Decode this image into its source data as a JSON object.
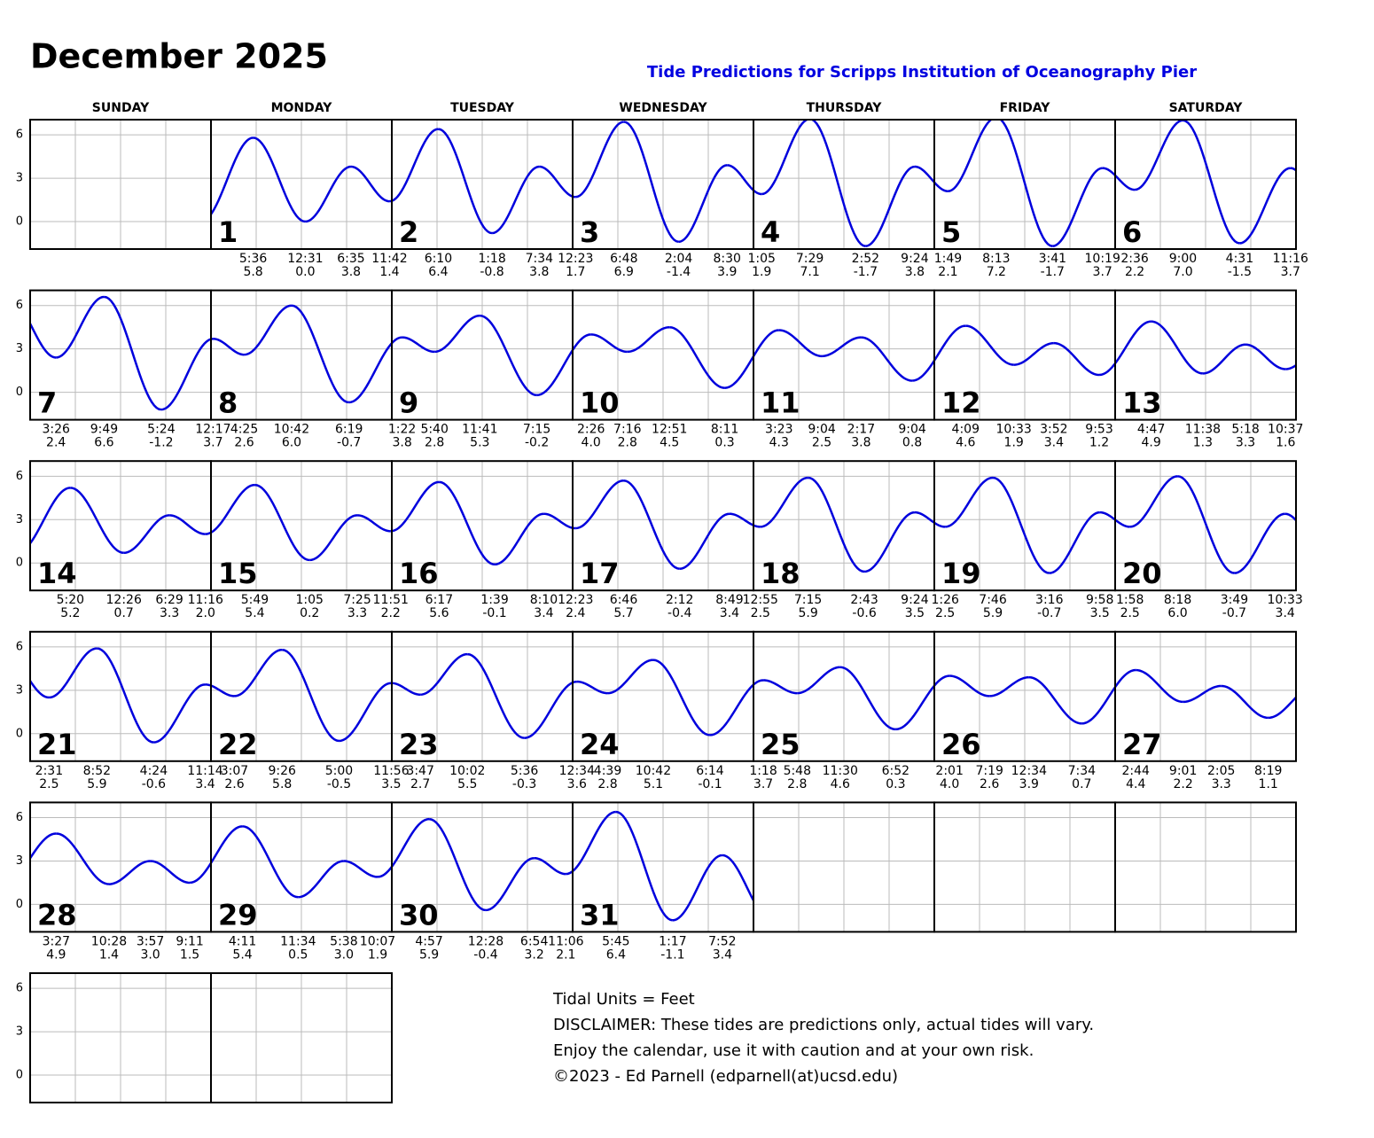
{
  "header": {
    "title": "December 2025",
    "subtitle": "Tide Predictions for Scripps Institution of Oceanography Pier"
  },
  "weekdays": [
    "SUNDAY",
    "MONDAY",
    "TUESDAY",
    "WEDNESDAY",
    "THURSDAY",
    "FRIDAY",
    "SATURDAY"
  ],
  "ylim": [
    -1.9,
    7.05
  ],
  "yticks": [
    0,
    3,
    6
  ],
  "days": [
    {
      "day": 1,
      "tides": [
        {
          "time": "5:36",
          "height": 5.8
        },
        {
          "time": "12:31",
          "height": 0,
          "height_label": "0.0"
        },
        {
          "time": "6:35",
          "height": 3.8
        },
        {
          "time": "11:42",
          "height": 1.4
        }
      ]
    },
    {
      "day": 2,
      "tides": [
        {
          "time": "6:10",
          "height": 6.4
        },
        {
          "time": "1:18",
          "height": -0.8
        },
        {
          "time": "7:34",
          "height": 3.8
        }
      ]
    },
    {
      "day": 3,
      "tides": [
        {
          "time": "12:23",
          "height": 1.7
        },
        {
          "time": "6:48",
          "height": 6.9
        },
        {
          "time": "2:04",
          "height": -1.4
        },
        {
          "time": "8:30",
          "height": 3.9
        }
      ]
    },
    {
      "day": 4,
      "tides": [
        {
          "time": "1:05",
          "height": 1.9
        },
        {
          "time": "7:29",
          "height": 7.1
        },
        {
          "time": "2:52",
          "height": -1.7
        },
        {
          "time": "9:24",
          "height": 3.8
        }
      ]
    },
    {
      "day": 5,
      "tides": [
        {
          "time": "1:49",
          "height": 2.1
        },
        {
          "time": "8:13",
          "height": 7.2
        },
        {
          "time": "3:41",
          "height": -1.7
        },
        {
          "time": "10:19",
          "height": 3.7
        }
      ]
    },
    {
      "day": 6,
      "tides": [
        {
          "time": "2:36",
          "height": 2.2
        },
        {
          "time": "9:00",
          "height": 7,
          "height_label": "7.0"
        },
        {
          "time": "4:31",
          "height": -1.5
        },
        {
          "time": "11:16",
          "height": 3.7
        }
      ]
    },
    {
      "day": 7,
      "tides": [
        {
          "time": "3:26",
          "height": 2.4
        },
        {
          "time": "9:49",
          "height": 6.6
        },
        {
          "time": "5:24",
          "height": -1.2
        }
      ]
    },
    {
      "day": 8,
      "tides": [
        {
          "time": "12:17",
          "height": 3.7
        },
        {
          "time": "4:25",
          "height": 2.6
        },
        {
          "time": "10:42",
          "height": 6,
          "height_label": "6.0"
        },
        {
          "time": "6:19",
          "height": -0.7
        }
      ]
    },
    {
      "day": 9,
      "tides": [
        {
          "time": "1:22",
          "height": 3.8
        },
        {
          "time": "5:40",
          "height": 2.8
        },
        {
          "time": "11:41",
          "height": 5.3
        },
        {
          "time": "7:15",
          "height": -0.2
        }
      ]
    },
    {
      "day": 10,
      "tides": [
        {
          "time": "2:26",
          "height": 4,
          "height_label": "4.0"
        },
        {
          "time": "7:16",
          "height": 2.8
        },
        {
          "time": "12:51",
          "height": 4.5
        },
        {
          "time": "8:11",
          "height": 0.3
        }
      ]
    },
    {
      "day": 11,
      "tides": [
        {
          "time": "3:23",
          "height": 4.3
        },
        {
          "time": "9:04",
          "height": 2.5
        },
        {
          "time": "2:17",
          "height": 3.8
        },
        {
          "time": "9:04",
          "height": 0.8
        }
      ]
    },
    {
      "day": 12,
      "tides": [
        {
          "time": "4:09",
          "height": 4.6
        },
        {
          "time": "10:33",
          "height": 1.9
        },
        {
          "time": "3:52",
          "height": 3.4
        },
        {
          "time": "9:53",
          "height": 1.2
        }
      ]
    },
    {
      "day": 13,
      "tides": [
        {
          "time": "4:47",
          "height": 4.9
        },
        {
          "time": "11:38",
          "height": 1.3
        },
        {
          "time": "5:18",
          "height": 3.3
        },
        {
          "time": "10:37",
          "height": 1.6
        }
      ]
    },
    {
      "day": 14,
      "tides": [
        {
          "time": "5:20",
          "height": 5.2
        },
        {
          "time": "12:26",
          "height": 0.7
        },
        {
          "time": "6:29",
          "height": 3.3
        },
        {
          "time": "11:16",
          "height": 2,
          "height_label": "2.0"
        }
      ]
    },
    {
      "day": 15,
      "tides": [
        {
          "time": "5:49",
          "height": 5.4
        },
        {
          "time": "1:05",
          "height": 0.2
        },
        {
          "time": "7:25",
          "height": 3.3
        },
        {
          "time": "11:51",
          "height": 2.2
        }
      ]
    },
    {
      "day": 16,
      "tides": [
        {
          "time": "6:17",
          "height": 5.6
        },
        {
          "time": "1:39",
          "height": -0.1
        },
        {
          "time": "8:10",
          "height": 3.4
        }
      ]
    },
    {
      "day": 17,
      "tides": [
        {
          "time": "12:23",
          "height": 2.4
        },
        {
          "time": "6:46",
          "height": 5.7
        },
        {
          "time": "2:12",
          "height": -0.4
        },
        {
          "time": "8:49",
          "height": 3.4
        }
      ]
    },
    {
      "day": 18,
      "tides": [
        {
          "time": "12:55",
          "height": 2.5
        },
        {
          "time": "7:15",
          "height": 5.9
        },
        {
          "time": "2:43",
          "height": -0.6
        },
        {
          "time": "9:24",
          "height": 3.5
        }
      ]
    },
    {
      "day": 19,
      "tides": [
        {
          "time": "1:26",
          "height": 2.5
        },
        {
          "time": "7:46",
          "height": 5.9
        },
        {
          "time": "3:16",
          "height": -0.7
        },
        {
          "time": "9:58",
          "height": 3.5
        }
      ]
    },
    {
      "day": 20,
      "tides": [
        {
          "time": "1:58",
          "height": 2.5
        },
        {
          "time": "8:18",
          "height": 6,
          "height_label": "6.0"
        },
        {
          "time": "3:49",
          "height": -0.7
        },
        {
          "time": "10:33",
          "height": 3.4
        }
      ]
    },
    {
      "day": 21,
      "tides": [
        {
          "time": "2:31",
          "height": 2.5
        },
        {
          "time": "8:52",
          "height": 5.9
        },
        {
          "time": "4:24",
          "height": -0.6
        },
        {
          "time": "11:14",
          "height": 3.4
        }
      ]
    },
    {
      "day": 22,
      "tides": [
        {
          "time": "3:07",
          "height": 2.6
        },
        {
          "time": "9:26",
          "height": 5.8
        },
        {
          "time": "5:00",
          "height": -0.5
        },
        {
          "time": "11:56",
          "height": 3.5
        }
      ]
    },
    {
      "day": 23,
      "tides": [
        {
          "time": "3:47",
          "height": 2.7
        },
        {
          "time": "10:02",
          "height": 5.5
        },
        {
          "time": "5:36",
          "height": -0.3
        }
      ]
    },
    {
      "day": 24,
      "tides": [
        {
          "time": "12:34",
          "height": 3.6
        },
        {
          "time": "4:39",
          "height": 2.8
        },
        {
          "time": "10:42",
          "height": 5.1
        },
        {
          "time": "6:14",
          "height": -0.1
        }
      ]
    },
    {
      "day": 25,
      "tides": [
        {
          "time": "1:18",
          "height": 3.7
        },
        {
          "time": "5:48",
          "height": 2.8
        },
        {
          "time": "11:30",
          "height": 4.6
        },
        {
          "time": "6:52",
          "height": 0.3
        }
      ]
    },
    {
      "day": 26,
      "tides": [
        {
          "time": "2:01",
          "height": 4,
          "height_label": "4.0"
        },
        {
          "time": "7:19",
          "height": 2.6
        },
        {
          "time": "12:34",
          "height": 3.9
        },
        {
          "time": "7:34",
          "height": 0.7
        }
      ]
    },
    {
      "day": 27,
      "tides": [
        {
          "time": "2:44",
          "height": 4.4
        },
        {
          "time": "9:01",
          "height": 2.2
        },
        {
          "time": "2:05",
          "height": 3.3
        },
        {
          "time": "8:19",
          "height": 1.1
        }
      ]
    },
    {
      "day": 28,
      "tides": [
        {
          "time": "3:27",
          "height": 4.9
        },
        {
          "time": "10:28",
          "height": 1.4
        },
        {
          "time": "3:57",
          "height": 3,
          "height_label": "3.0"
        },
        {
          "time": "9:11",
          "height": 1.5
        }
      ]
    },
    {
      "day": 29,
      "tides": [
        {
          "time": "4:11",
          "height": 5.4
        },
        {
          "time": "11:34",
          "height": 0.5
        },
        {
          "time": "5:38",
          "height": 3,
          "height_label": "3.0"
        },
        {
          "time": "10:07",
          "height": 1.9
        }
      ]
    },
    {
      "day": 30,
      "tides": [
        {
          "time": "4:57",
          "height": 5.9
        },
        {
          "time": "12:28",
          "height": -0.4
        },
        {
          "time": "6:54",
          "height": 3.2
        },
        {
          "time": "11:06",
          "height": 2.1
        }
      ]
    },
    {
      "day": 31,
      "tides": [
        {
          "time": "5:45",
          "height": 6.4
        },
        {
          "time": "1:17",
          "height": -1.1
        },
        {
          "time": "7:52",
          "height": 3.4
        }
      ]
    }
  ],
  "footer": [
    "Tidal Units = Feet",
    "DISCLAIMER: These tides are predictions only, actual tides will vary.",
    "Enjoy the calendar, use it with caution and at your own risk.",
    "©2023 - Ed Parnell (edparnell(at)ucsd.edu)"
  ]
}
